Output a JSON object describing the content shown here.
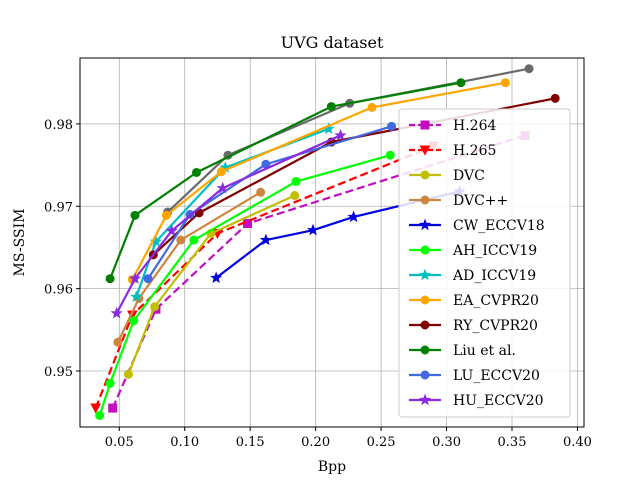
{
  "chart_data": {
    "type": "line",
    "title": "UVG dataset",
    "xlabel": "Bpp",
    "ylabel": "MS-SSIM",
    "xlim": [
      0.02,
      0.405
    ],
    "ylim": [
      0.9432,
      0.988
    ],
    "xticks": [
      "0.05",
      "0.10",
      "0.15",
      "0.20",
      "0.25",
      "0.30",
      "0.35",
      "0.40"
    ],
    "xtick_values": [
      0.05,
      0.1,
      0.15,
      0.2,
      0.25,
      0.3,
      0.35,
      0.4
    ],
    "yticks": [
      "0.95",
      "0.96",
      "0.97",
      "0.98"
    ],
    "ytick_values": [
      0.95,
      0.96,
      0.97,
      0.98
    ],
    "grid": true,
    "legend_position": "lower-right",
    "series": [
      {
        "name": "H.264",
        "color": "#c20dc2",
        "dash": true,
        "marker": "square",
        "x": [
          0.045,
          0.078,
          0.148,
          0.36
        ],
        "y": [
          0.9455,
          0.9575,
          0.9679,
          0.9786
        ]
      },
      {
        "name": "H.265",
        "color": "#ff0000",
        "dash": true,
        "marker": "triangle-down",
        "x": [
          0.032,
          0.06,
          0.125,
          0.29
        ],
        "y": [
          0.9455,
          0.9568,
          0.9667,
          0.9773
        ]
      },
      {
        "name": "DVC",
        "color": "#bfbf00",
        "dash": false,
        "marker": "circle",
        "x": [
          0.057,
          0.077,
          0.12,
          0.184
        ],
        "y": [
          0.9496,
          0.9578,
          0.9667,
          0.9713
        ]
      },
      {
        "name": "DVC++",
        "color": "#cd853f",
        "dash": false,
        "marker": "circle",
        "x": [
          0.049,
          0.065,
          0.097,
          0.158
        ],
        "y": [
          0.9535,
          0.9588,
          0.9659,
          0.9717
        ]
      },
      {
        "name": "CW_ECCV18",
        "color": "#0000e0",
        "dash": false,
        "marker": "star",
        "x": [
          0.124,
          0.162,
          0.198,
          0.229,
          0.31
        ],
        "y": [
          0.9613,
          0.9659,
          0.9671,
          0.9687,
          0.9718
        ]
      },
      {
        "name": "AH_ICCV19",
        "color": "#00ff00",
        "dash": false,
        "marker": "circle",
        "x": [
          0.035,
          0.043,
          0.061,
          0.107,
          0.185,
          0.257
        ],
        "y": [
          0.9446,
          0.9485,
          0.9561,
          0.9659,
          0.973,
          0.9762
        ]
      },
      {
        "name": "AD_ICCV19",
        "color": "#00bfbf",
        "dash": false,
        "marker": "star",
        "x": [
          0.063,
          0.078,
          0.131,
          0.21
        ],
        "y": [
          0.959,
          0.9657,
          0.9747,
          0.9794
        ]
      },
      {
        "name": "EA_CVPR20",
        "color": "#ffa500",
        "dash": false,
        "marker": "circle",
        "x": [
          0.06,
          0.086,
          0.128,
          0.243,
          0.345
        ],
        "y": [
          0.9611,
          0.9689,
          0.9742,
          0.982,
          0.985
        ]
      },
      {
        "name": "RY_CVPR20",
        "color": "#800000",
        "dash": false,
        "marker": "circle",
        "x": [
          0.076,
          0.111,
          0.212,
          0.383
        ],
        "y": [
          0.9641,
          0.9692,
          0.9778,
          0.9831
        ]
      },
      {
        "name": "Liu et al.",
        "color": "#008000",
        "dash": false,
        "marker": "circle",
        "x": [
          0.043,
          0.062,
          0.109,
          0.212,
          0.311
        ],
        "y": [
          0.9612,
          0.9689,
          0.9741,
          0.9821,
          0.985
        ]
      },
      {
        "name": "LU_ECCV20",
        "color": "#4169e1",
        "dash": false,
        "marker": "circle",
        "x": [
          0.072,
          0.104,
          0.162,
          0.258
        ],
        "y": [
          0.9612,
          0.969,
          0.9751,
          0.9797
        ]
      },
      {
        "name": "HU_ECCV20",
        "color": "#8a2be2",
        "dash": false,
        "marker": "star",
        "x": [
          0.048,
          0.062,
          0.09,
          0.129,
          0.219
        ],
        "y": [
          0.957,
          0.9612,
          0.967,
          0.9722,
          0.9786
        ]
      }
    ],
    "extra_line": {
      "color": "#696969",
      "marker": "circle",
      "x": [
        0.087,
        0.133,
        0.226,
        0.363
      ],
      "y": [
        0.9693,
        0.9762,
        0.9825,
        0.9867
      ]
    }
  }
}
